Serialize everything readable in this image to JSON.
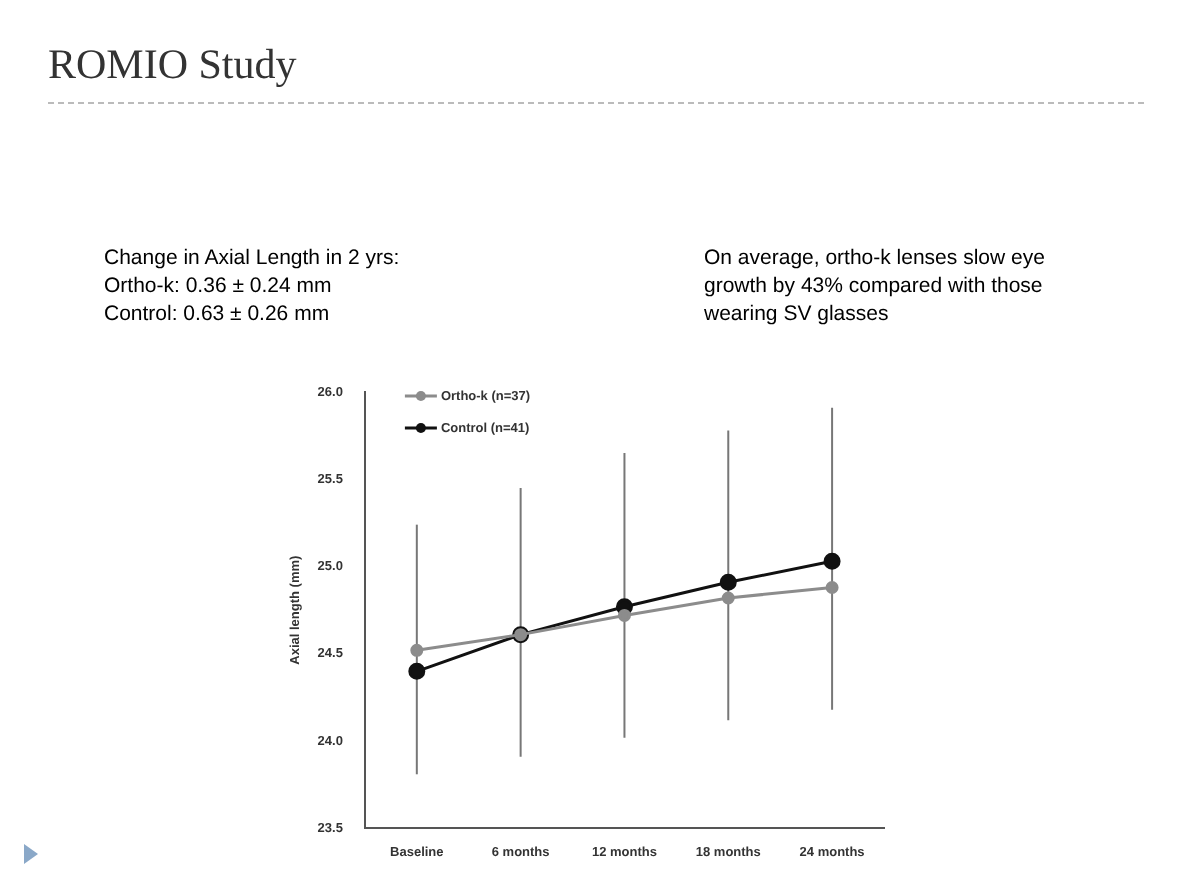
{
  "chart_data": {
    "type": "line",
    "title": "ROMIO Study",
    "ylabel": "Axial length (mm)",
    "annotations": [
      "Change in Axial Length in 2 yrs:",
      "Ortho-k: 0.36 ± 0.24 mm",
      "Control: 0.63 ± 0.26 mm",
      "On average, ortho-k lenses slow eye growth by 43% compared with those wearing SV glasses"
    ],
    "categories": [
      "Baseline",
      "6 months",
      "12 months",
      "18 months",
      "24 months"
    ],
    "series": [
      {
        "name": "Ortho-k (n=37)",
        "color": "#8c8c8c",
        "values": [
          24.52,
          24.61,
          24.72,
          24.82,
          24.88
        ]
      },
      {
        "name": "Control (n=41)",
        "color": "#111111",
        "values": [
          24.4,
          24.61,
          24.77,
          24.91,
          25.03
        ],
        "errors": [
          [
            23.81,
            25.24
          ],
          [
            23.91,
            25.45
          ],
          [
            24.02,
            25.65
          ],
          [
            24.12,
            25.78
          ],
          [
            24.18,
            25.91
          ]
        ]
      }
    ],
    "ylim": [
      23.5,
      26.0
    ],
    "yticks": [
      {
        "value": 23.5,
        "label": "23.5"
      },
      {
        "value": 24,
        "label": "24.0"
      },
      {
        "value": 24.5,
        "label": "24.5"
      },
      {
        "value": 25,
        "label": "25.0"
      },
      {
        "value": 25.5,
        "label": "25.5"
      },
      {
        "value": 26,
        "label": "26.0"
      }
    ],
    "grid": false,
    "legend": "top left",
    "marker": "circle",
    "line_style": "solid"
  }
}
